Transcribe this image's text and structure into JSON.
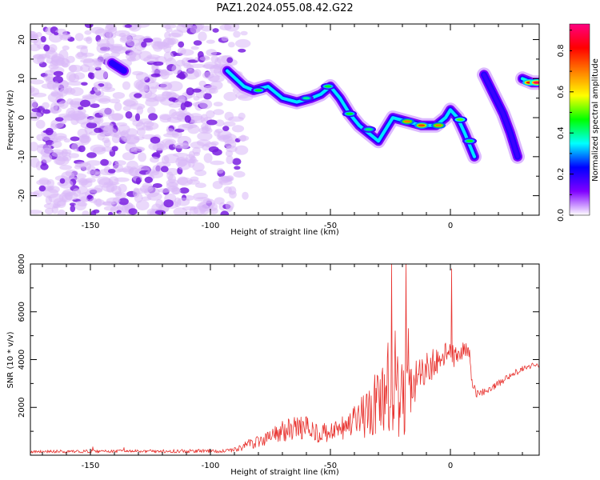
{
  "title": "PAZ1.2024.055.08.42.G22",
  "colors": {
    "snr_line": "#e8332f",
    "axes": "#000000",
    "speckle_light": "#d9b8f7",
    "speckle_dark": "#7a1fe0"
  },
  "chart_data": [
    {
      "type": "heatmap",
      "title": "PAZ1.2024.055.08.42.G22",
      "xlabel": "Height of straight line (km)",
      "ylabel": "Frequency (Hz)",
      "xlim": [
        -175,
        37
      ],
      "ylim": [
        -25,
        24
      ],
      "xticks": [
        -150,
        -100,
        -50,
        0
      ],
      "yticks": [
        -20,
        -10,
        0,
        10,
        20
      ],
      "colorbar": {
        "label": "Normalized spectral amplitude",
        "range": [
          0,
          0.93
        ],
        "ticks": [
          0.0,
          0.2,
          0.4,
          0.6,
          0.8
        ],
        "tick_labels": [
          "0.0",
          "0.2",
          "0.4",
          "0.6",
          "0.8"
        ],
        "colormap": [
          "#ffffff",
          "#8000ff",
          "#0000ff",
          "#00ffff",
          "#00ff00",
          "#ffff00",
          "#ff8000",
          "#ff0000",
          "#ff0080"
        ]
      },
      "noise_region": {
        "x_from": -175,
        "x_to": -83,
        "amplitude": [
          0.02,
          0.2
        ]
      },
      "tracks": [
        {
          "points": [
            [
              -93,
              12
            ],
            [
              -86,
              8
            ],
            [
              -82,
              7
            ],
            [
              -76,
              8
            ],
            [
              -70,
              5
            ],
            [
              -64,
              4
            ],
            [
              -58,
              5
            ],
            [
              -54,
              6
            ],
            [
              -50,
              8
            ],
            [
              -46,
              5
            ],
            [
              -42,
              1
            ],
            [
              -38,
              -2
            ],
            [
              -34,
              -4
            ],
            [
              -30,
              -6
            ],
            [
              -28,
              -4
            ],
            [
              -24,
              0
            ],
            [
              -18,
              -1
            ],
            [
              -12,
              -2
            ],
            [
              -6,
              -2
            ],
            [
              -2,
              0
            ],
            [
              0,
              2
            ],
            [
              3,
              0
            ],
            [
              6,
              -4
            ],
            [
              10,
              -10
            ]
          ],
          "peak": 0.75
        },
        {
          "points": [
            [
              14,
              11
            ],
            [
              18,
              6
            ],
            [
              22,
              1
            ],
            [
              25,
              -4
            ],
            [
              28,
              -10
            ]
          ],
          "peak": 0.4
        },
        {
          "points": [
            [
              30,
              10
            ],
            [
              34,
              9
            ],
            [
              37,
              9
            ]
          ],
          "peak": 0.8
        },
        {
          "points": [
            [
              -141,
              14
            ],
            [
              -136,
              12
            ]
          ],
          "peak": 0.45
        }
      ],
      "hot_spots": [
        {
          "x": -80,
          "y": 7,
          "value": 0.45
        },
        {
          "x": -60,
          "y": 5,
          "value": 0.4
        },
        {
          "x": -51,
          "y": 8,
          "value": 0.45
        },
        {
          "x": -42,
          "y": 1,
          "value": 0.45
        },
        {
          "x": -34,
          "y": -3,
          "value": 0.42
        },
        {
          "x": -18,
          "y": -1,
          "value": 0.7
        },
        {
          "x": -12,
          "y": -2,
          "value": 0.75
        },
        {
          "x": -5,
          "y": -2,
          "value": 0.7
        },
        {
          "x": 4,
          "y": -0.5,
          "value": 0.5
        },
        {
          "x": 8,
          "y": -6,
          "value": 0.45
        },
        {
          "x": 33,
          "y": 9,
          "value": 0.8
        },
        {
          "x": 36,
          "y": 9,
          "value": 0.9
        }
      ]
    },
    {
      "type": "line",
      "xlabel": "Height of straight line (km)",
      "ylabel": "SNR (10 * v/v)",
      "xlim": [
        -175,
        37
      ],
      "ylim": [
        0,
        8000
      ],
      "xticks": [
        -150,
        -100,
        -50,
        0
      ],
      "yticks": [
        2000,
        4000,
        6000,
        8000
      ],
      "x_step_km": 0.25,
      "baseline": [
        [
          -175,
          150
        ],
        [
          -92,
          180
        ],
        [
          -88,
          300
        ],
        [
          -84,
          450
        ],
        [
          -80,
          600
        ],
        [
          -76,
          750
        ],
        [
          -72,
          900
        ],
        [
          -68,
          1050
        ],
        [
          -64,
          1150
        ],
        [
          -60,
          1150
        ],
        [
          -56,
          1000
        ],
        [
          -52,
          900
        ],
        [
          -48,
          950
        ],
        [
          -44,
          1150
        ],
        [
          -40,
          1350
        ],
        [
          -36,
          1600
        ],
        [
          -32,
          1900
        ],
        [
          -28,
          2200
        ],
        [
          -25,
          2400
        ],
        [
          -22,
          2300
        ],
        [
          -18,
          2400
        ],
        [
          -14,
          3200
        ],
        [
          -10,
          3600
        ],
        [
          -6,
          3900
        ],
        [
          -2,
          4300
        ],
        [
          0,
          4150
        ],
        [
          2,
          4100
        ],
        [
          5,
          4400
        ],
        [
          8,
          4300
        ],
        [
          9,
          2900
        ],
        [
          11,
          2550
        ],
        [
          15,
          2700
        ],
        [
          20,
          3000
        ],
        [
          25,
          3350
        ],
        [
          30,
          3600
        ],
        [
          34,
          3750
        ],
        [
          37,
          3700
        ]
      ],
      "noise_amplitude": [
        [
          -175,
          60
        ],
        [
          -92,
          80
        ],
        [
          -88,
          150
        ],
        [
          -80,
          300
        ],
        [
          -70,
          450
        ],
        [
          -60,
          500
        ],
        [
          -50,
          400
        ],
        [
          -40,
          700
        ],
        [
          -32,
          1400
        ],
        [
          -28,
          1800
        ],
        [
          -22,
          2000
        ],
        [
          -14,
          800
        ],
        [
          -5,
          600
        ],
        [
          0,
          500
        ],
        [
          9,
          300
        ],
        [
          11,
          150
        ],
        [
          37,
          120
        ]
      ],
      "spikes": [
        {
          "x": -26,
          "y": 4700
        },
        {
          "x": -24.5,
          "y": 8000
        },
        {
          "x": -23,
          "y": 5200
        },
        {
          "x": -18.5,
          "y": 8000
        },
        {
          "x": -17.5,
          "y": 5300
        },
        {
          "x": 0.5,
          "y": 7800
        },
        {
          "x": -149,
          "y": 350
        },
        {
          "x": -136,
          "y": 320
        }
      ]
    }
  ]
}
